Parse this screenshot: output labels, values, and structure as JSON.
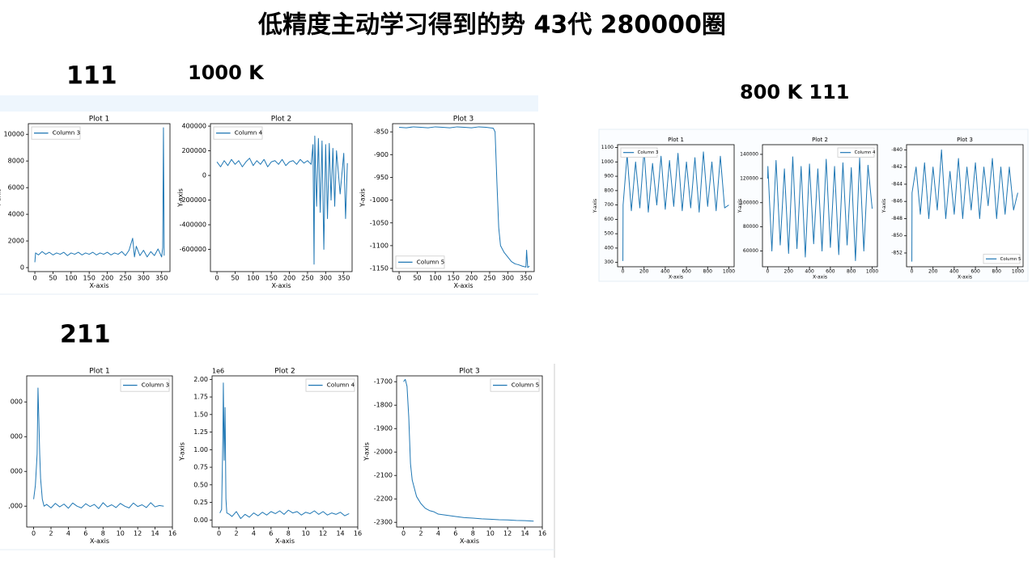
{
  "slide": {
    "title": "低精度主动学习得到的势 43代 280000圈",
    "labels": [
      "111",
      "1000 K",
      "800 K 111",
      "211"
    ]
  },
  "chart_data": [
    {
      "type": "line",
      "title": "Plot 1",
      "xlabel": "X-axis",
      "ylabel": "Y-axis",
      "legend": "upper left",
      "x": [
        0,
        2,
        10,
        20,
        30,
        40,
        50,
        60,
        70,
        80,
        90,
        100,
        110,
        120,
        130,
        140,
        150,
        160,
        170,
        180,
        190,
        200,
        210,
        220,
        230,
        240,
        250,
        260,
        270,
        275,
        280,
        290,
        300,
        310,
        320,
        330,
        340,
        350,
        353,
        355,
        357
      ],
      "series": [
        {
          "name": "Column 3",
          "color": "#1f77b4",
          "values": [
            400,
            1100,
            950,
            1200,
            1000,
            1150,
            950,
            1100,
            1000,
            1150,
            900,
            1100,
            1000,
            1150,
            950,
            1100,
            1000,
            1150,
            950,
            1100,
            1000,
            1150,
            950,
            1100,
            1000,
            1200,
            900,
            1300,
            2200,
            800,
            1600,
            900,
            1300,
            800,
            1200,
            900,
            1400,
            800,
            1500,
            10500,
            900
          ]
        }
      ],
      "xlim": [
        -18,
        373
      ],
      "ylim": [
        -300,
        10800
      ],
      "xticks": [
        0,
        50,
        100,
        150,
        200,
        250,
        300,
        350
      ],
      "yticks": [
        0,
        2000,
        4000,
        6000,
        8000,
        10000
      ]
    },
    {
      "type": "line",
      "title": "Plot 2",
      "xlabel": "X-axis",
      "ylabel": "Y-axis",
      "legend": "upper left",
      "x": [
        0,
        10,
        20,
        30,
        40,
        50,
        60,
        70,
        80,
        90,
        100,
        110,
        120,
        130,
        140,
        150,
        160,
        170,
        180,
        190,
        200,
        210,
        220,
        230,
        240,
        250,
        260,
        265,
        268,
        270,
        275,
        280,
        285,
        290,
        295,
        300,
        305,
        310,
        315,
        320,
        325,
        330,
        340,
        350,
        355,
        360
      ],
      "series": [
        {
          "name": "Column 4",
          "color": "#1f77b4",
          "values": [
            110000,
            70000,
            120000,
            80000,
            130000,
            90000,
            120000,
            70000,
            110000,
            140000,
            80000,
            120000,
            90000,
            130000,
            70000,
            110000,
            120000,
            90000,
            130000,
            80000,
            110000,
            120000,
            90000,
            130000,
            100000,
            120000,
            90000,
            250000,
            -720000,
            320000,
            -250000,
            300000,
            -300000,
            280000,
            -600000,
            250000,
            -350000,
            260000,
            -200000,
            220000,
            -250000,
            200000,
            -150000,
            180000,
            -350000,
            100000
          ]
        }
      ],
      "xlim": [
        -18,
        373
      ],
      "ylim": [
        -780000,
        420000
      ],
      "xticks": [
        0,
        50,
        100,
        150,
        200,
        250,
        300,
        350
      ],
      "yticks": [
        -600000,
        -400000,
        -200000,
        0,
        200000,
        400000
      ]
    },
    {
      "type": "line",
      "title": "Plot 3",
      "xlabel": "X-axis",
      "ylabel": "Y-axis",
      "legend": "lower left",
      "x": [
        0,
        20,
        40,
        60,
        80,
        100,
        120,
        140,
        160,
        180,
        200,
        220,
        240,
        260,
        265,
        270,
        275,
        280,
        290,
        300,
        310,
        320,
        330,
        340,
        350,
        352,
        355,
        360
      ],
      "series": [
        {
          "name": "Column 5",
          "color": "#1f77b4",
          "values": [
            -840,
            -841,
            -839,
            -840,
            -841,
            -839,
            -840,
            -841,
            -839,
            -840,
            -841,
            -839,
            -840,
            -842,
            -850,
            -960,
            -1060,
            -1100,
            -1115,
            -1125,
            -1135,
            -1140,
            -1142,
            -1145,
            -1147,
            -1110,
            -1148,
            -1145
          ]
        }
      ],
      "xlim": [
        -18,
        373
      ],
      "ylim": [
        -1157,
        -832
      ],
      "xticks": [
        0,
        50,
        100,
        150,
        200,
        250,
        300,
        350
      ],
      "yticks": [
        -1150,
        -1100,
        -1050,
        -1000,
        -950,
        -900,
        -850
      ]
    },
    {
      "type": "line",
      "title": "Plot 1",
      "xlabel": "X-axis",
      "ylabel": "Y-axis",
      "legend": "upper left",
      "x": [
        0,
        2,
        40,
        80,
        120,
        160,
        200,
        240,
        280,
        320,
        360,
        400,
        440,
        480,
        520,
        560,
        600,
        640,
        680,
        720,
        760,
        800,
        840,
        880,
        920,
        960,
        1000
      ],
      "series": [
        {
          "name": "Column 3",
          "color": "#1f77b4",
          "values": [
            310,
            700,
            1050,
            660,
            1000,
            680,
            1080,
            650,
            990,
            700,
            1040,
            670,
            1010,
            690,
            1060,
            660,
            1000,
            680,
            1030,
            650,
            1070,
            690,
            1000,
            660,
            1040,
            680,
            700
          ]
        }
      ],
      "xlim": [
        -50,
        1050
      ],
      "ylim": [
        270,
        1120
      ],
      "xticks": [
        0,
        200,
        400,
        600,
        800,
        1000
      ],
      "yticks": [
        300,
        400,
        500,
        600,
        700,
        800,
        900,
        1000,
        1100
      ]
    },
    {
      "type": "line",
      "title": "Plot 2",
      "xlabel": "X-axis",
      "ylabel": "Y-axis",
      "legend": "upper right",
      "x": [
        0,
        2,
        40,
        80,
        120,
        160,
        200,
        240,
        280,
        320,
        360,
        400,
        440,
        480,
        520,
        560,
        600,
        640,
        680,
        720,
        760,
        800,
        840,
        880,
        920,
        960,
        1000
      ],
      "series": [
        {
          "name": "Column 4",
          "color": "#1f77b4",
          "values": [
            120000,
            130000,
            60000,
            135000,
            65000,
            128000,
            58000,
            138000,
            62000,
            130000,
            55000,
            132000,
            66000,
            128000,
            60000,
            136000,
            63000,
            130000,
            57000,
            133000,
            65000,
            129000,
            52000,
            137000,
            60000,
            131000,
            95000
          ]
        }
      ],
      "xlim": [
        -50,
        1050
      ],
      "ylim": [
        47000,
        148000
      ],
      "xticks": [
        0,
        200,
        400,
        600,
        800,
        1000
      ],
      "yticks": [
        60000,
        80000,
        100000,
        120000,
        140000
      ]
    },
    {
      "type": "line",
      "title": "Plot 3",
      "xlabel": "X-axis",
      "ylabel": "Y-axis",
      "legend": "lower right",
      "x": [
        0,
        2,
        40,
        80,
        120,
        160,
        200,
        240,
        280,
        320,
        360,
        400,
        440,
        480,
        520,
        560,
        600,
        640,
        680,
        720,
        760,
        800,
        840,
        880,
        920,
        960,
        1000
      ],
      "series": [
        {
          "name": "Column 5",
          "color": "#1f77b4",
          "values": [
            -853,
            -845,
            -842,
            -847.5,
            -841.5,
            -848,
            -842,
            -847,
            -840,
            -848,
            -842.5,
            -847.5,
            -841,
            -848,
            -842,
            -847,
            -841.5,
            -848,
            -842,
            -846.5,
            -841,
            -848,
            -842,
            -847.5,
            -842,
            -847,
            -845
          ]
        }
      ],
      "xlim": [
        -50,
        1050
      ],
      "ylim": [
        -853.6,
        -839.4
      ],
      "xticks": [
        0,
        200,
        400,
        600,
        800,
        1000
      ],
      "yticks": [
        -852,
        -850,
        -848,
        -846,
        -844,
        -842,
        -840
      ]
    },
    {
      "type": "line",
      "title": "Plot 1",
      "xlabel": "X-axis",
      "legend": "upper right",
      "x": [
        0,
        0.2,
        0.4,
        0.5,
        0.6,
        0.7,
        0.8,
        1.0,
        1.2,
        1.5,
        2,
        2.5,
        3,
        3.5,
        4,
        4.5,
        5,
        5.5,
        6,
        6.5,
        7,
        7.5,
        8,
        8.5,
        9,
        9.5,
        10,
        10.5,
        11,
        11.5,
        12,
        12.5,
        13,
        13.5,
        14,
        14.5,
        15
      ],
      "series": [
        {
          "name": "Column 3",
          "color": "#1f77b4",
          "values": [
            1200,
            1600,
            2500,
            4400,
            3500,
            2500,
            1800,
            1200,
            1000,
            1050,
            950,
            1080,
            980,
            1060,
            940,
            1090,
            1000,
            950,
            1070,
            990,
            1050,
            930,
            1100,
            980,
            1040,
            960,
            1080,
            1000,
            950,
            1090,
            990,
            1040,
            960,
            1100,
            980,
            1020,
            1000
          ]
        }
      ],
      "xlim": [
        -0.8,
        16
      ],
      "ylim": [
        400,
        4750
      ],
      "xticks": [
        0,
        2,
        4,
        6,
        8,
        10,
        12,
        14,
        16
      ],
      "yticks": [
        {
          "value": 1000,
          "label": ",000"
        },
        {
          "value": 2000,
          "label": "000"
        },
        {
          "value": 3000,
          "label": "000"
        },
        {
          "value": 4000,
          "label": "000"
        }
      ]
    },
    {
      "type": "line",
      "title": "Plot 2",
      "xlabel": "X-axis",
      "ylabel": "Y-axis",
      "legend": "upper right",
      "offset_label": "1e6",
      "x": [
        0.1,
        0.3,
        0.45,
        0.5,
        0.6,
        0.7,
        0.8,
        0.9,
        1.2,
        1.5,
        2,
        2.5,
        3,
        3.5,
        4,
        4.5,
        5,
        5.5,
        6,
        6.5,
        7,
        7.5,
        8,
        8.5,
        9,
        9.5,
        10,
        10.5,
        11,
        11.5,
        12,
        12.5,
        13,
        13.5,
        14,
        14.5,
        15
      ],
      "series": [
        {
          "name": "Column 4",
          "color": "#1f77b4",
          "values": [
            0.1,
            0.15,
            1.2,
            1.95,
            0.85,
            1.6,
            0.3,
            0.1,
            0.08,
            0.05,
            0.12,
            0.02,
            0.08,
            0.04,
            0.1,
            0.06,
            0.11,
            0.07,
            0.12,
            0.09,
            0.13,
            0.08,
            0.14,
            0.1,
            0.12,
            0.07,
            0.11,
            0.09,
            0.13,
            0.08,
            0.12,
            0.07,
            0.1,
            0.08,
            0.11,
            0.06,
            0.09
          ]
        }
      ],
      "xlim": [
        -0.8,
        16
      ],
      "ylim": [
        -0.1,
        2.05
      ],
      "xticks": [
        0,
        2,
        4,
        6,
        8,
        10,
        12,
        14,
        16
      ],
      "yticks": [
        {
          "value": 0,
          "label": "0.00"
        },
        {
          "value": 0.25,
          "label": "0.25"
        },
        {
          "value": 0.5,
          "label": "0.50"
        },
        {
          "value": 0.75,
          "label": "0.75"
        },
        {
          "value": 1,
          "label": "1.00"
        },
        {
          "value": 1.25,
          "label": "1.25"
        },
        {
          "value": 1.5,
          "label": "1.50"
        },
        {
          "value": 1.75,
          "label": "1.75"
        },
        {
          "value": 2,
          "label": "2.00"
        }
      ]
    },
    {
      "type": "line",
      "title": "Plot 3",
      "xlabel": "X-axis",
      "ylabel": "Y-axis",
      "legend": "upper right",
      "x": [
        0,
        0.2,
        0.4,
        0.6,
        0.8,
        1,
        1.5,
        2,
        2.5,
        3,
        3.5,
        4,
        5,
        6,
        7,
        8,
        9,
        10,
        11,
        12,
        13,
        14,
        15
      ],
      "series": [
        {
          "name": "Column 5",
          "color": "#1f77b4",
          "values": [
            -1700,
            -1690,
            -1720,
            -1850,
            -2050,
            -2120,
            -2190,
            -2220,
            -2240,
            -2250,
            -2255,
            -2265,
            -2270,
            -2275,
            -2280,
            -2282,
            -2285,
            -2287,
            -2289,
            -2290,
            -2292,
            -2293,
            -2295
          ]
        }
      ],
      "xlim": [
        -0.8,
        16
      ],
      "ylim": [
        -2320,
        -1675
      ],
      "xticks": [
        0,
        2,
        4,
        6,
        8,
        10,
        12,
        14,
        16
      ],
      "yticks": [
        -2300,
        -2200,
        -2100,
        -2000,
        -1900,
        -1800,
        -1700
      ]
    }
  ]
}
